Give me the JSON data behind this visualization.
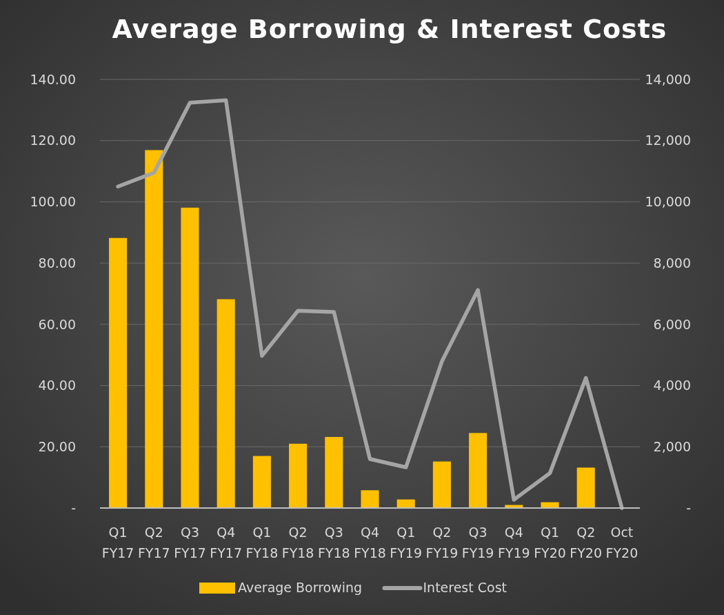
{
  "chart_data": {
    "type": "bar",
    "title": "Average Borrowing & Interest Costs",
    "categories": [
      "Q1\nFY17",
      "Q2\nFY17",
      "Q3\nFY17",
      "Q4\nFY17",
      "Q1\nFY18",
      "Q2\nFY18",
      "Q3\nFY18",
      "Q4\nFY18",
      "Q1\nFY19",
      "Q2\nFY19",
      "Q3\nFY19",
      "Q4\nFY19",
      "Q1\nFY20",
      "Q2\nFY20",
      "Oct\nFY20"
    ],
    "series": [
      {
        "name": "Average Borrowing",
        "color": "#ffc000",
        "values": [
          88.2,
          116.9,
          98.1,
          68.2,
          17.0,
          21.0,
          23.2,
          5.8,
          2.8,
          15.2,
          24.5,
          1.0,
          1.9,
          13.2,
          0
        ]
      },
      {
        "name": "Interest Cost",
        "type": "line",
        "axis": "y2",
        "color": "#a5a5a5",
        "values": [
          10500,
          10950,
          13240,
          13320,
          4970,
          6440,
          6400,
          1600,
          1330,
          4790,
          7120,
          270,
          1140,
          4250,
          0
        ]
      }
    ],
    "ylim": [
      0,
      140
    ],
    "yticks": [
      {
        "value": 0,
        "label": "-"
      },
      {
        "value": 20,
        "label": "20.00"
      },
      {
        "value": 40,
        "label": "40.00"
      },
      {
        "value": 60,
        "label": "60.00"
      },
      {
        "value": 80,
        "label": "80.00"
      },
      {
        "value": 100,
        "label": "100.00"
      },
      {
        "value": 120,
        "label": "120.00"
      },
      {
        "value": 140,
        "label": "140.00"
      }
    ],
    "y2lim": [
      0,
      14000
    ],
    "y2ticks": [
      {
        "value": 0,
        "label": "-"
      },
      {
        "value": 2000,
        "label": "2,000"
      },
      {
        "value": 4000,
        "label": "4,000"
      },
      {
        "value": 6000,
        "label": "6,000"
      },
      {
        "value": 8000,
        "label": "8,000"
      },
      {
        "value": 10000,
        "label": "10,000"
      },
      {
        "value": 12000,
        "label": "12,000"
      },
      {
        "value": 14000,
        "label": "14,000"
      }
    ],
    "grid": "y",
    "legend": "bottom",
    "marker": "none"
  }
}
